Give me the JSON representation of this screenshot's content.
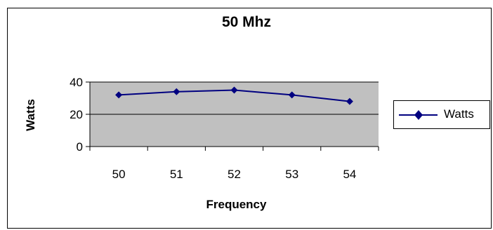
{
  "chart_data": {
    "type": "line",
    "title": "50 Mhz",
    "xlabel": "Frequency",
    "ylabel": "Watts",
    "categories": [
      "50",
      "51",
      "52",
      "53",
      "54"
    ],
    "series": [
      {
        "name": "Watts",
        "values": [
          32,
          34,
          35,
          32,
          28
        ]
      }
    ],
    "ylim": [
      0,
      40
    ],
    "yticks": [
      0,
      20,
      40
    ],
    "grid": true,
    "legend": "right",
    "colors": {
      "plot_area": "#c0c0c0",
      "series": "#000080",
      "gridline": "#000000"
    }
  }
}
